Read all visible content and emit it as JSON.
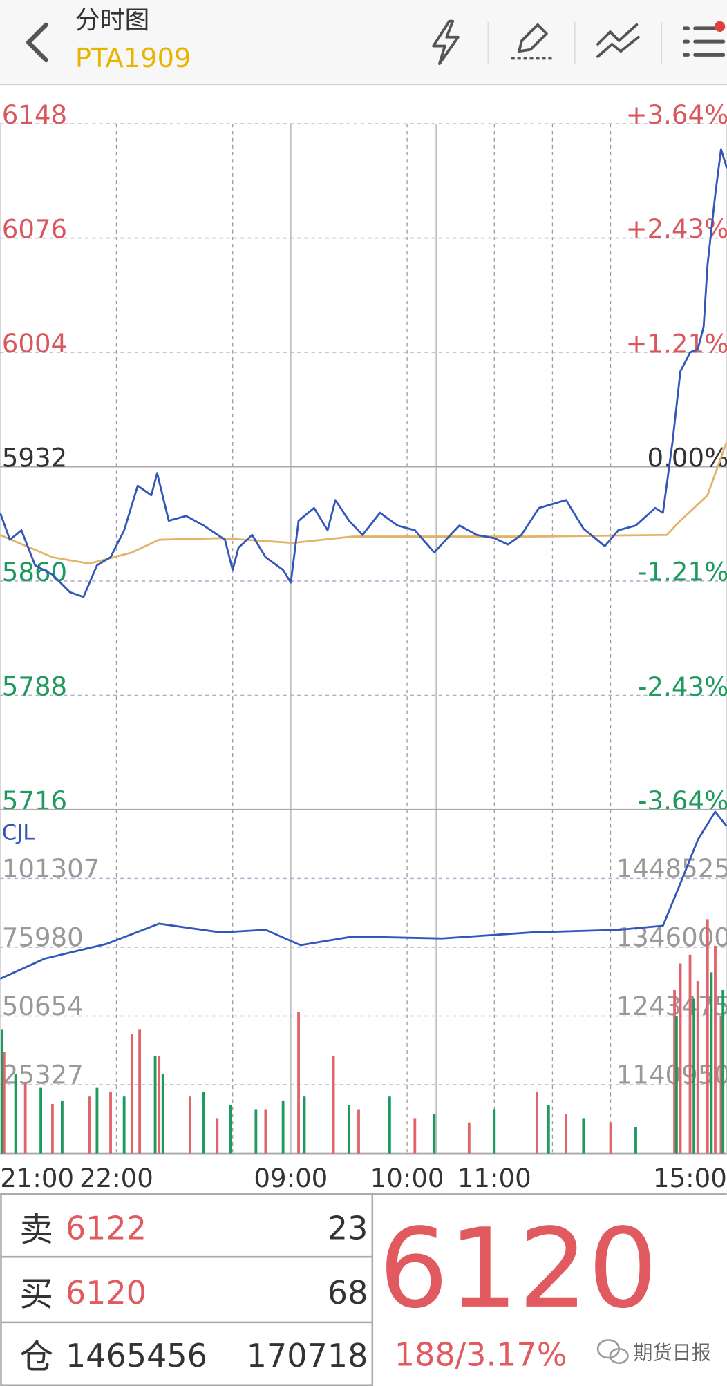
{
  "header": {
    "title": "分时图",
    "symbol": "PTA1909"
  },
  "chart_data": [
    {
      "type": "line",
      "xlim": [
        0,
        375
      ],
      "xgrid": [
        60,
        120,
        210,
        255,
        285,
        315
      ],
      "session_breaks": [
        150,
        225
      ],
      "ylim": [
        5716,
        6148
      ],
      "yticks": [
        5716,
        5788,
        5860,
        5932,
        6004,
        6076,
        6148
      ],
      "y2lim": [
        -3.64,
        3.64
      ],
      "y2ticks": [
        {
          "value": -3.64,
          "label": "-3.64%"
        },
        {
          "value": -2.43,
          "label": "-2.43%"
        },
        {
          "value": -1.21,
          "label": "-1.21%"
        },
        {
          "value": 0,
          "label": "0.00%"
        },
        {
          "value": 1.21,
          "label": "+1.21%"
        },
        {
          "value": 2.43,
          "label": "+2.43%"
        },
        {
          "value": 3.64,
          "label": "+3.64%"
        }
      ],
      "series": [
        {
          "color": "#3257b8",
          "x": [
            0,
            5,
            11,
            18,
            27,
            36,
            43,
            50,
            57,
            64,
            71,
            78,
            81,
            87,
            96,
            105,
            116,
            120,
            123,
            130,
            137,
            146,
            150,
            154,
            162,
            169,
            173,
            180,
            187,
            196,
            205,
            214,
            224,
            230,
            237,
            246,
            255,
            262,
            269,
            278,
            292,
            301,
            312,
            319,
            328,
            338,
            342,
            347,
            351,
            356,
            360,
            363,
            365,
            369,
            372,
            375
          ],
          "values": [
            5903,
            5886,
            5892,
            5870,
            5864,
            5853,
            5850,
            5870,
            5875,
            5892,
            5920,
            5914,
            5928,
            5898,
            5901,
            5895,
            5886,
            5867,
            5881,
            5889,
            5875,
            5867,
            5859,
            5898,
            5906,
            5892,
            5911,
            5898,
            5889,
            5903,
            5895,
            5892,
            5878,
            5886,
            5895,
            5889,
            5887,
            5883,
            5889,
            5906,
            5911,
            5893,
            5882,
            5892,
            5895,
            5906,
            5903,
            5948,
            5992,
            6004,
            6006,
            6020,
            6059,
            6103,
            6132,
            6120
          ]
        },
        {
          "color": "#e2b46a",
          "x": [
            0,
            27,
            46,
            68,
            82,
            114,
            151,
            182,
            274,
            344,
            351,
            365,
            375
          ],
          "values": [
            5889,
            5875,
            5871,
            5878,
            5886,
            5887,
            5884,
            5888,
            5888,
            5889,
            5898,
            5914,
            5948
          ]
        }
      ]
    },
    {
      "type": "bar",
      "title": "CJL",
      "xlim": [
        0,
        375
      ],
      "xgrid": [
        60,
        120,
        210,
        255,
        285,
        315
      ],
      "session_breaks": [
        150,
        225
      ],
      "xticks": [
        {
          "value": 0,
          "label": "21:00"
        },
        {
          "value": 60,
          "label": "22:00"
        },
        {
          "value": 150,
          "label": "09:00"
        },
        {
          "value": 210,
          "label": "10:00"
        },
        {
          "value": 255,
          "label": "11:00"
        },
        {
          "value": 375,
          "label": "15:00"
        }
      ],
      "ylim": [
        0,
        126634
      ],
      "yticks": [
        25327,
        50654,
        75980,
        101307
      ],
      "y2lim": [
        1038425,
        1551050
      ],
      "y2ticks": [
        1140950,
        1243475,
        1346000,
        1448525
      ],
      "series": [
        {
          "color": "#e0646a",
          "x": [
            2,
            13,
            27,
            46,
            57,
            68,
            72,
            82,
            98,
            112,
            137,
            154,
            172,
            185,
            214,
            242,
            277,
            292,
            315,
            348,
            351,
            356,
            360,
            365,
            369,
            372
          ],
          "values": [
            37400,
            26000,
            18200,
            21200,
            22800,
            43900,
            45600,
            35800,
            21200,
            13000,
            16300,
            52100,
            35800,
            16300,
            13000,
            11400,
            22800,
            14600,
            11400,
            60200,
            70000,
            73200,
            63500,
            86300,
            76500,
            50500
          ]
        },
        {
          "color": "#1e9a5e",
          "x": [
            1,
            8,
            21,
            32,
            50,
            64,
            80,
            84,
            105,
            119,
            132,
            146,
            157,
            180,
            201,
            224,
            255,
            283,
            301,
            328,
            349,
            358,
            367,
            373
          ],
          "values": [
            45600,
            29300,
            24400,
            19500,
            24400,
            21200,
            35800,
            29300,
            22800,
            17900,
            16300,
            19500,
            21200,
            17900,
            21200,
            14600,
            16300,
            17900,
            13000,
            9800,
            50500,
            57000,
            66700,
            60200
          ]
        },
        {
          "color": "#3257b8",
          "axis": "y2",
          "x": [
            0,
            23,
            55,
            82,
            114,
            137,
            155,
            182,
            228,
            274,
            319,
            342,
            351,
            360,
            369,
            375
          ],
          "values": [
            1299000,
            1329000,
            1351000,
            1381000,
            1368000,
            1372000,
            1349000,
            1362000,
            1359000,
            1368000,
            1372000,
            1378000,
            1441000,
            1506000,
            1548000,
            1526000
          ]
        }
      ]
    }
  ],
  "quote": {
    "ask": {
      "label": "卖",
      "price": 6122,
      "volume": 23
    },
    "bid": {
      "label": "买",
      "price": 6120,
      "volume": 68
    },
    "position": {
      "label": "仓",
      "open_interest": 1465456,
      "change": 170718
    },
    "last": 6120,
    "change": "188/3.17%",
    "watermark": "期货日报"
  }
}
